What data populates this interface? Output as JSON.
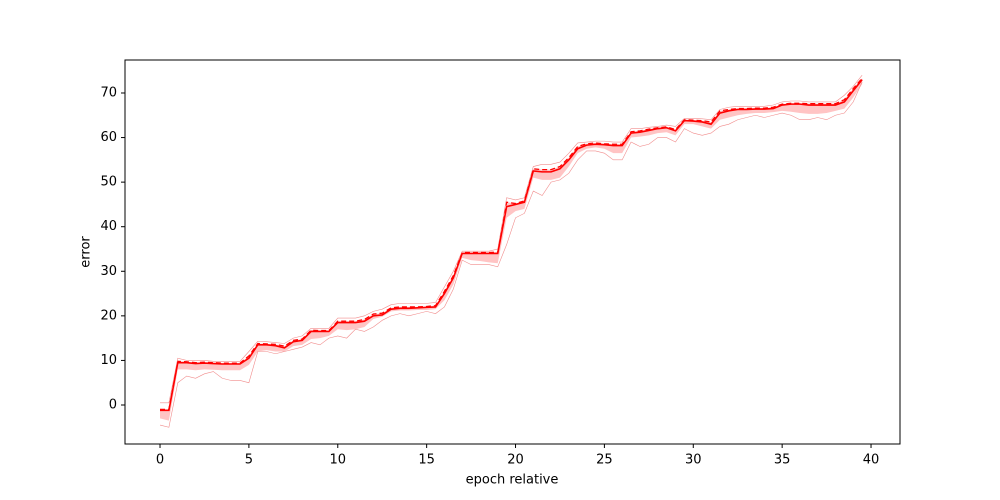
{
  "chart_data": {
    "type": "line",
    "xlabel": "epoch relative",
    "ylabel": "error",
    "xlim": [
      -1.97,
      41.63
    ],
    "ylim": [
      -8.75,
      77.4
    ],
    "xticks": [
      0,
      5,
      10,
      15,
      20,
      25,
      30,
      35,
      40
    ],
    "yticks": [
      0,
      10,
      20,
      30,
      40,
      50,
      60,
      70
    ],
    "x": [
      0,
      0.5,
      1,
      1.5,
      2,
      2.5,
      3,
      3.5,
      4,
      4.5,
      5,
      5.5,
      6,
      6.5,
      7,
      7.5,
      8,
      8.5,
      9,
      9.5,
      10,
      10.5,
      11,
      11.5,
      12,
      12.5,
      13,
      13.5,
      14,
      14.5,
      15,
      15.5,
      16,
      16.5,
      17,
      17.5,
      18,
      18.5,
      19,
      19.5,
      20,
      20.5,
      21,
      21.5,
      22,
      22.5,
      23,
      23.5,
      24,
      24.5,
      25,
      25.5,
      26,
      26.5,
      27,
      27.5,
      28,
      28.5,
      29,
      29.5,
      30,
      30.5,
      31,
      31.5,
      32,
      32.5,
      33,
      33.5,
      34,
      34.5,
      35,
      35.5,
      36,
      36.5,
      37,
      37.5,
      38,
      38.5,
      39,
      39.5
    ],
    "series": [
      {
        "style": "band",
        "fill_to": 2,
        "color": "#ffc4c4",
        "values": [
          -3,
          -3.5,
          8,
          8,
          7.8,
          8,
          7.9,
          7.8,
          7.8,
          7.8,
          9,
          12,
          12.3,
          12,
          12,
          13.2,
          13.5,
          14.8,
          15,
          15.5,
          17,
          16.8,
          17,
          17.5,
          19.3,
          19.8,
          21,
          21.2,
          21.2,
          21.3,
          21.3,
          21.5,
          23.5,
          27,
          33,
          32.5,
          32.3,
          32,
          31.8,
          42,
          43.5,
          44,
          51,
          50.5,
          50.5,
          51,
          53.5,
          56.5,
          57.5,
          57.8,
          57.5,
          56.5,
          56.5,
          60,
          60.2,
          60.5,
          61,
          61.2,
          60.5,
          63,
          63,
          62.5,
          62,
          64,
          64.5,
          65,
          65.3,
          65.5,
          65.5,
          65.7,
          66,
          65.8,
          65.5,
          65.3,
          65.3,
          65.5,
          66,
          66.5,
          69,
          72
        ]
      },
      {
        "style": "thin",
        "color": "#f08080",
        "values": [
          -4.5,
          -5,
          5,
          6.5,
          6,
          7,
          7.5,
          6,
          5.5,
          5.5,
          5,
          12,
          12,
          11.5,
          12,
          12.5,
          13,
          14,
          13.5,
          15,
          15.5,
          15,
          17,
          16.5,
          17.5,
          19,
          20,
          20.5,
          20,
          20.5,
          21,
          20.5,
          22,
          26,
          32.5,
          31.5,
          31.5,
          31.5,
          31,
          36,
          42,
          43,
          48,
          47,
          50,
          50.5,
          52,
          55,
          57,
          57,
          56.5,
          55,
          55,
          59,
          58,
          58.5,
          60,
          60,
          59,
          62,
          61,
          60.5,
          61,
          62.5,
          63,
          64,
          64.5,
          65,
          64.5,
          65,
          65.5,
          65,
          64,
          64,
          64.5,
          64,
          65,
          65.5,
          68,
          72.5
        ]
      },
      {
        "style": "dashed",
        "color": "#ff0000",
        "values": [
          -1,
          -1,
          9.8,
          9.7,
          9.5,
          9.6,
          9.5,
          9.4,
          9.4,
          9.4,
          11,
          13.8,
          13.7,
          13.6,
          13.2,
          14.5,
          14.8,
          16.8,
          16.7,
          16.7,
          18.8,
          18.8,
          18.8,
          19.2,
          20.4,
          20.6,
          21.8,
          22,
          22,
          22,
          22.1,
          22.3,
          25.5,
          29,
          34.2,
          34.2,
          34.2,
          34.2,
          34.3,
          45.5,
          45.2,
          45.8,
          53,
          52.8,
          52.8,
          53.5,
          55.5,
          58,
          58.6,
          58.8,
          58.6,
          58.5,
          58.5,
          61.3,
          61.5,
          61.9,
          62.2,
          62.4,
          61.8,
          64,
          63.9,
          63.8,
          63.5,
          66,
          66.3,
          66.5,
          66.5,
          66.6,
          66.6,
          66.8,
          67.5,
          67.7,
          67.7,
          67.6,
          67.6,
          67.6,
          67.6,
          68.5,
          71,
          73.3
        ]
      },
      {
        "style": "thin",
        "color": "#f08080",
        "values": [
          0.5,
          0.5,
          10.5,
          10,
          10,
          10,
          9.8,
          9.8,
          9.8,
          9.8,
          12,
          14.3,
          14.2,
          14,
          13.8,
          15,
          15.5,
          17.2,
          17.2,
          17.2,
          19.5,
          19.5,
          19.5,
          20,
          21,
          21.5,
          22.5,
          22.8,
          22.8,
          22.8,
          22.8,
          23,
          26.5,
          30,
          34.5,
          34.5,
          34.5,
          34.5,
          35,
          46.5,
          46,
          46.5,
          53.5,
          54,
          54,
          54.5,
          56.5,
          58.8,
          59,
          59.2,
          59.2,
          59,
          59,
          62,
          62,
          62.3,
          62.5,
          62.8,
          62.5,
          64.3,
          64.3,
          64.2,
          64,
          66.3,
          66.8,
          67,
          67,
          67,
          67,
          67.3,
          68,
          68.2,
          68.2,
          68,
          68,
          68,
          68,
          69.5,
          71.5,
          74
        ]
      },
      {
        "style": "solid",
        "color": "#ff0000",
        "values": [
          -1.2,
          -1.2,
          9.5,
          9.5,
          9.3,
          9.4,
          9.3,
          9.2,
          9.2,
          9.2,
          10.5,
          13.5,
          13.5,
          13.3,
          12.8,
          14.2,
          14.5,
          16.5,
          16.5,
          16.5,
          18.5,
          18.5,
          18.5,
          18.8,
          20,
          20.2,
          21.5,
          21.7,
          21.7,
          21.8,
          21.9,
          22,
          25,
          28.5,
          34,
          34,
          34,
          34,
          34,
          44.5,
          45,
          45.5,
          52.5,
          52.3,
          52.3,
          53,
          55,
          57.5,
          58.3,
          58.5,
          58.4,
          58.2,
          58.2,
          61,
          61.2,
          61.6,
          62,
          62.2,
          61.5,
          63.8,
          63.7,
          63.5,
          63,
          65.5,
          66,
          66.3,
          66.3,
          66.4,
          66.4,
          66.5,
          67.3,
          67.5,
          67.5,
          67.3,
          67.3,
          67.3,
          67.3,
          68,
          70.5,
          73
        ]
      }
    ]
  }
}
